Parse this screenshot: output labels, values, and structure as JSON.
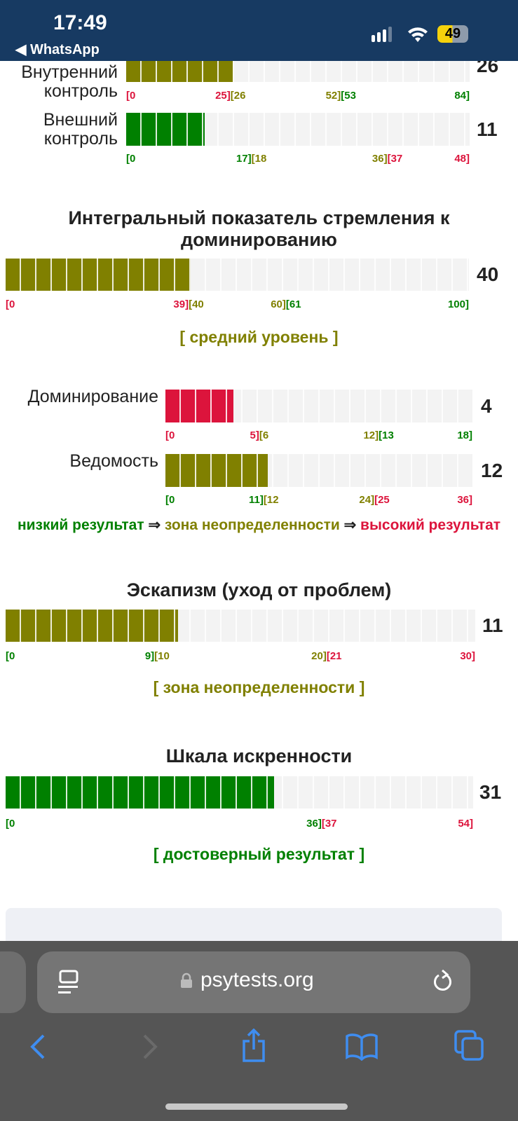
{
  "status_bar": {
    "time": "17:49",
    "back_app": "WhatsApp",
    "battery": "49"
  },
  "colors": {
    "red": "#dc143c",
    "olive": "#808000",
    "green": "#008000",
    "empty": "#f3f3f3"
  },
  "rows": [
    {
      "label": "Внутренний контроль",
      "value": 26,
      "max": 84,
      "fill": "olive",
      "ticks": [
        [
          "[0",
          "red"
        ],
        [
          "25]",
          "red"
        ],
        [
          "[26",
          "olive"
        ],
        [
          "52]",
          "olive"
        ],
        [
          "[53",
          "green"
        ],
        [
          "84]",
          "green"
        ]
      ],
      "mids": [
        25,
        52
      ]
    },
    {
      "label": "Внешний контроль",
      "value": 11,
      "max": 48,
      "fill": "green",
      "ticks": [
        [
          "[0",
          "green"
        ],
        [
          "17]",
          "green"
        ],
        [
          "[18",
          "olive"
        ],
        [
          "36]",
          "olive"
        ],
        [
          "[37",
          "red"
        ],
        [
          "48]",
          "red"
        ]
      ],
      "mids": [
        17,
        36
      ]
    },
    {
      "title": "Интегральный показатель стремления к доминированию",
      "value": 40,
      "max": 100,
      "fill": "olive",
      "ticks": [
        [
          "[0",
          "red"
        ],
        [
          "39]",
          "red"
        ],
        [
          "[40",
          "olive"
        ],
        [
          "60]",
          "olive"
        ],
        [
          "[61",
          "green"
        ],
        [
          "100]",
          "green"
        ]
      ],
      "mids": [
        39,
        60
      ],
      "verdict": "[ средний уровень ]",
      "verdict_color": "olive"
    },
    {
      "label": "Доминирование",
      "value": 4,
      "max": 18,
      "fill": "red",
      "ticks": [
        [
          "[0",
          "red"
        ],
        [
          "5]",
          "red"
        ],
        [
          "[6",
          "olive"
        ],
        [
          "12]",
          "olive"
        ],
        [
          "[13",
          "green"
        ],
        [
          "18]",
          "green"
        ]
      ],
      "mids": [
        5,
        12
      ]
    },
    {
      "label": "Ведомость",
      "value": 12,
      "max": 36,
      "fill": "olive",
      "ticks": [
        [
          "[0",
          "green"
        ],
        [
          "11]",
          "green"
        ],
        [
          "[12",
          "olive"
        ],
        [
          "24]",
          "olive"
        ],
        [
          "[25",
          "red"
        ],
        [
          "36]",
          "red"
        ]
      ],
      "mids": [
        11,
        24
      ]
    },
    {
      "title": "Эскапизм (уход от проблем)",
      "value": 11,
      "max": 30,
      "fill": "olive",
      "ticks": [
        [
          "[0",
          "green"
        ],
        [
          "9]",
          "green"
        ],
        [
          "[10",
          "olive"
        ],
        [
          "20]",
          "olive"
        ],
        [
          "[21",
          "red"
        ],
        [
          "30]",
          "red"
        ]
      ],
      "mids": [
        9,
        20
      ],
      "verdict": "[ зона неопределенности ]",
      "verdict_color": "olive"
    },
    {
      "title": "Шкала искренности",
      "value": 31,
      "max": 54,
      "fill": "green",
      "ticks": [
        [
          "[0",
          "green"
        ],
        [
          "36]",
          "green"
        ],
        [
          "[37",
          "red"
        ],
        [
          "54]",
          "red"
        ]
      ],
      "mids": [
        36
      ],
      "verdict": "[ достоверный результат ]",
      "verdict_color": "green"
    }
  ],
  "legend": {
    "low": "низкий результат",
    "arrow1": " ⇒ ",
    "mid": "зона неопределенности",
    "arrow2": " ⇒ ",
    "high": "высокий результат"
  },
  "browser": {
    "url": "psytests.org"
  }
}
